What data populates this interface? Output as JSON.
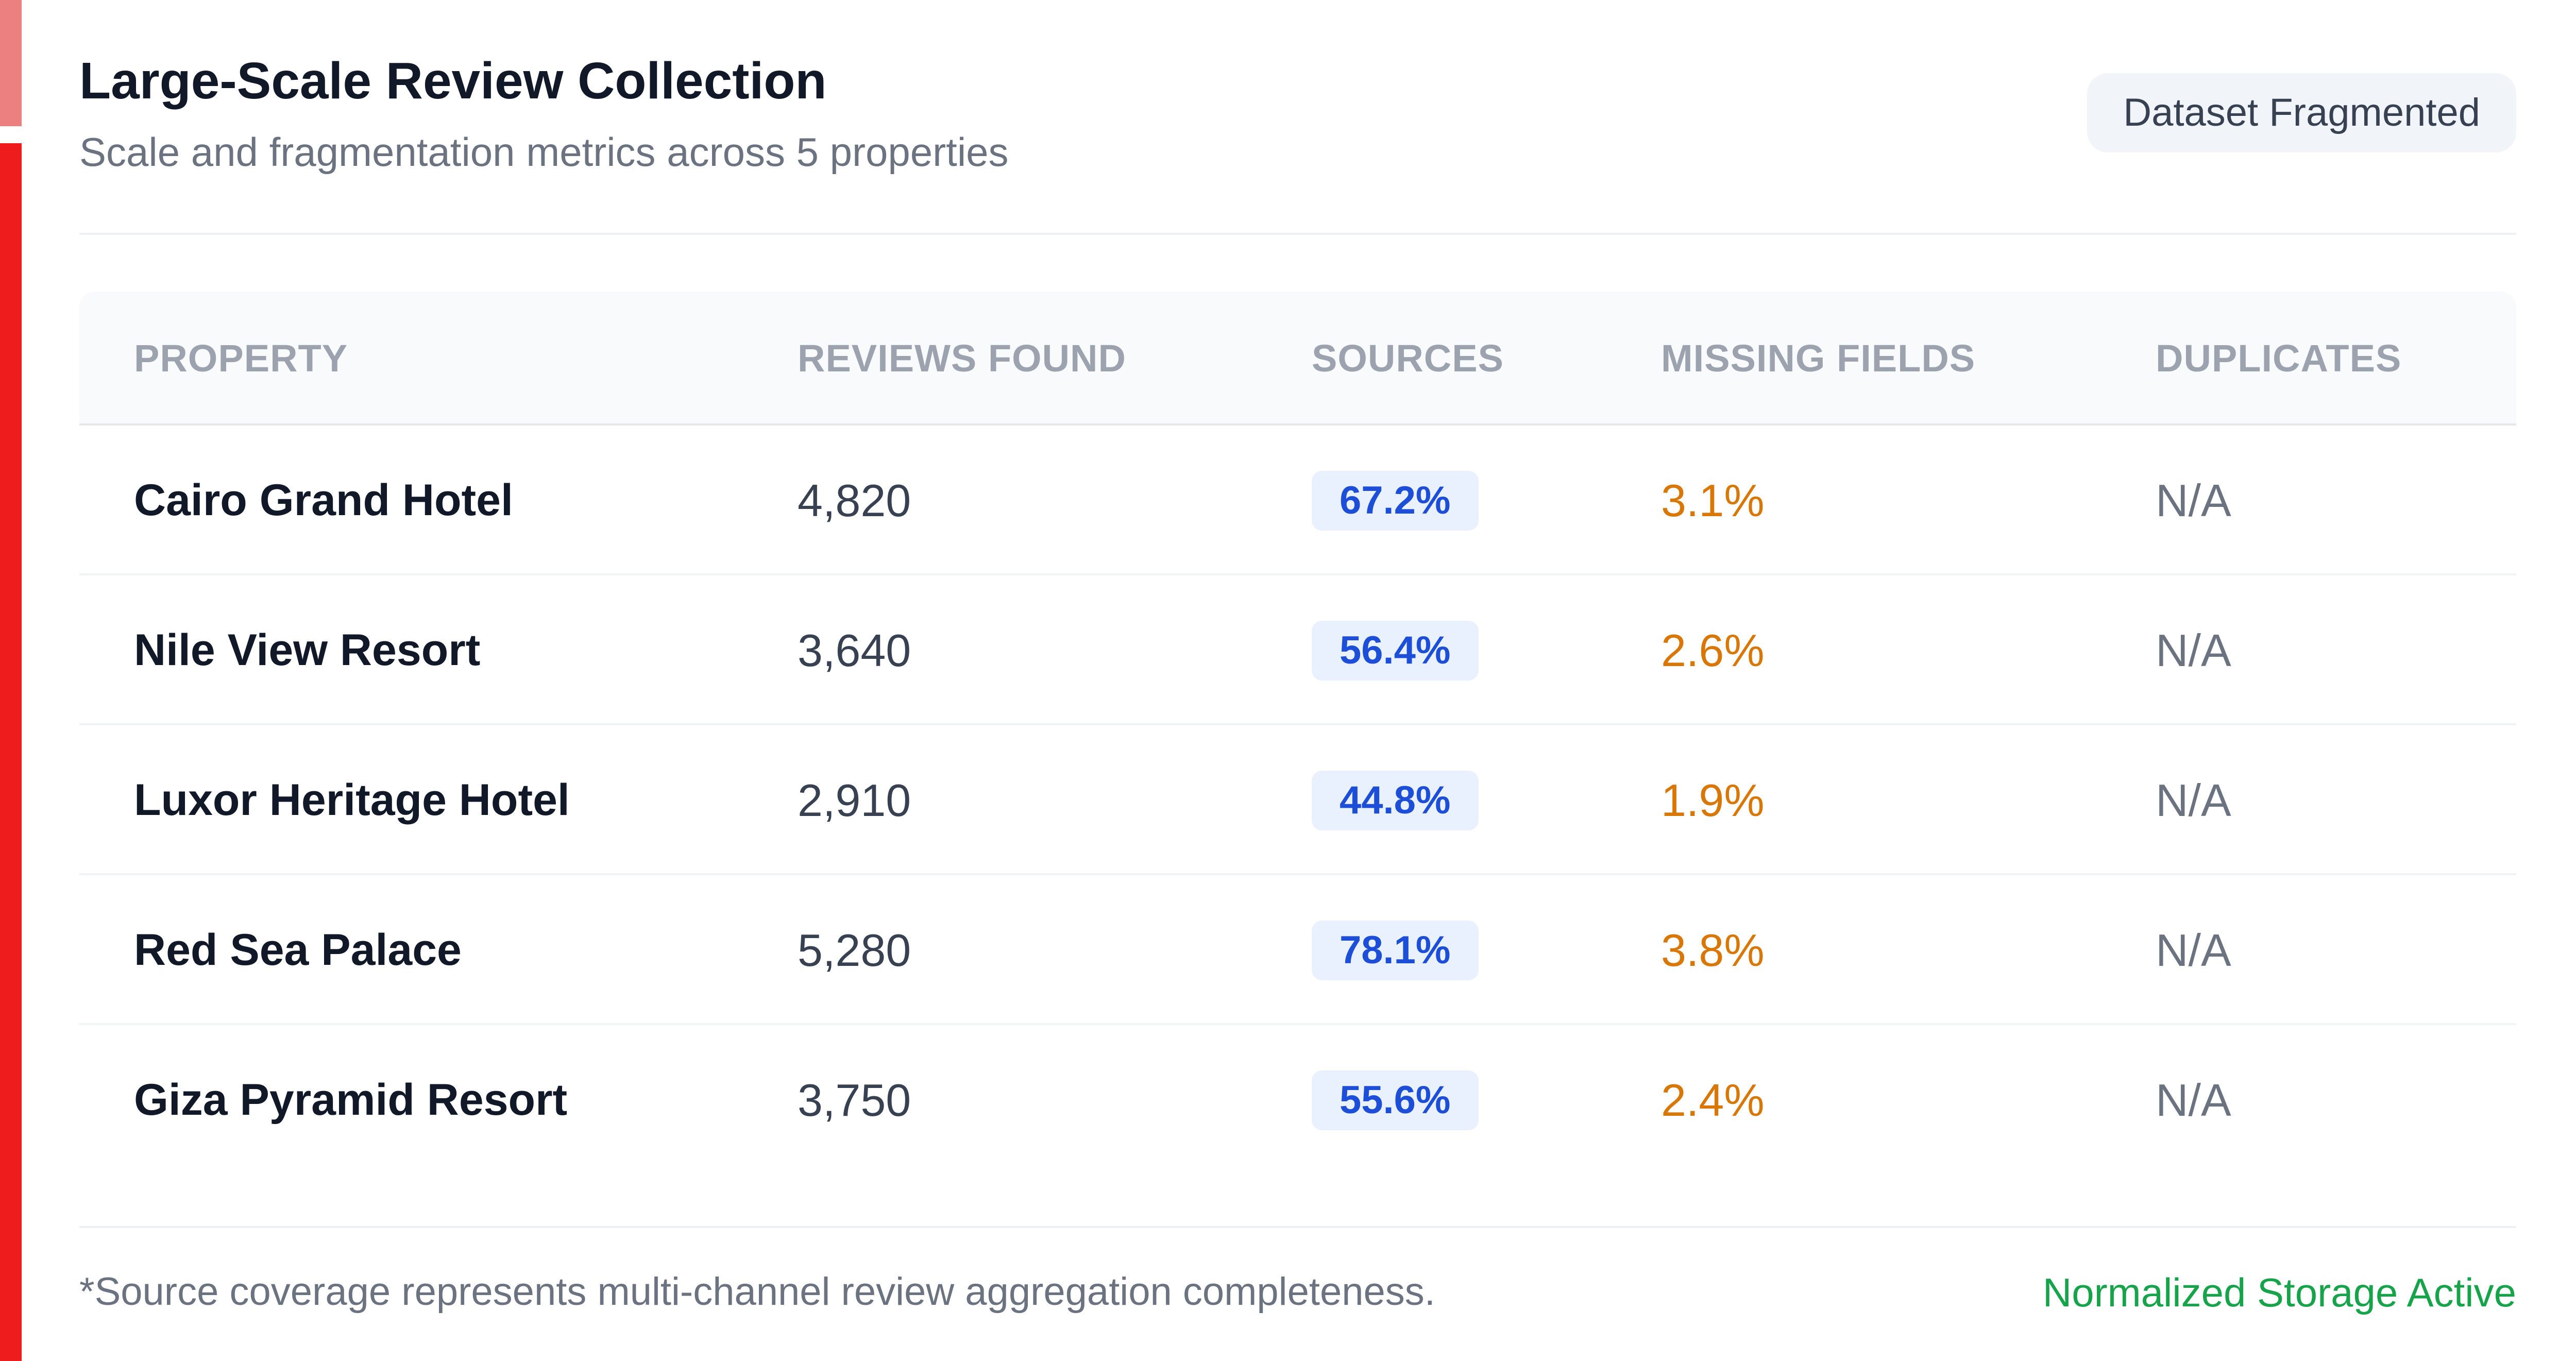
{
  "header": {
    "title": "Large-Scale Review Collection",
    "subtitle": "Scale and fragmentation metrics across 5 properties",
    "status_pill": "Dataset Fragmented"
  },
  "table": {
    "columns": {
      "property": "PROPERTY",
      "reviews_found": "REVIEWS FOUND",
      "sources": "SOURCES",
      "missing_fields": "MISSING FIELDS",
      "duplicates": "DUPLICATES"
    },
    "rows": [
      {
        "property": "Cairo Grand Hotel",
        "reviews_found": "4,820",
        "sources": "67.2%",
        "missing_fields": "3.1%",
        "duplicates": "N/A"
      },
      {
        "property": "Nile View Resort",
        "reviews_found": "3,640",
        "sources": "56.4%",
        "missing_fields": "2.6%",
        "duplicates": "N/A"
      },
      {
        "property": "Luxor Heritage Hotel",
        "reviews_found": "2,910",
        "sources": "44.8%",
        "missing_fields": "1.9%",
        "duplicates": "N/A"
      },
      {
        "property": "Red Sea Palace",
        "reviews_found": "5,280",
        "sources": "78.1%",
        "missing_fields": "3.8%",
        "duplicates": "N/A"
      },
      {
        "property": "Giza Pyramid Resort",
        "reviews_found": "3,750",
        "sources": "55.6%",
        "missing_fields": "2.4%",
        "duplicates": "N/A"
      }
    ]
  },
  "footer": {
    "footnote": "*Source coverage represents multi-channel review aggregation completeness.",
    "storage_status": "Normalized Storage Active"
  },
  "colors": {
    "accent_light": "#ec8080",
    "accent_strong": "#ee1c1c",
    "sources_text": "#1d4ed8",
    "sources_bg": "#e9f0fe",
    "missing_text": "#d97706",
    "status_ok": "#16a34a"
  }
}
